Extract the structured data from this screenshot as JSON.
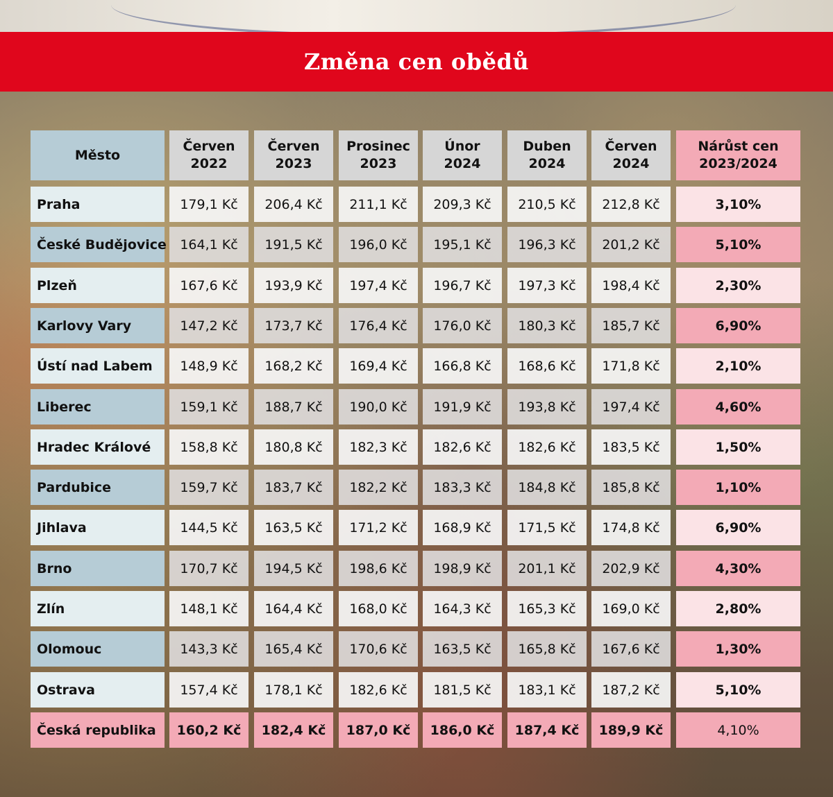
{
  "title": "Změna cen obědů",
  "chart_data": {
    "type": "table",
    "title": "Změna cen obědů",
    "columns": [
      {
        "line1": "Město",
        "line2": ""
      },
      {
        "line1": "Červen",
        "line2": "2022"
      },
      {
        "line1": "Červen",
        "line2": "2023"
      },
      {
        "line1": "Prosinec",
        "line2": "2023"
      },
      {
        "line1": "Únor",
        "line2": "2024"
      },
      {
        "line1": "Duben",
        "line2": "2024"
      },
      {
        "line1": "Červen",
        "line2": "2024"
      },
      {
        "line1": "Nárůst cen",
        "line2": "2023/2024"
      }
    ],
    "rows": [
      {
        "city": "Praha",
        "values": [
          "179,1 Kč",
          "206,4 Kč",
          "211,1 Kč",
          "209,3 Kč",
          "210,5 Kč",
          "212,8 Kč"
        ],
        "increase": "3,10%"
      },
      {
        "city": "České Budějovice",
        "values": [
          "164,1 Kč",
          "191,5 Kč",
          "196,0 Kč",
          "195,1 Kč",
          "196,3 Kč",
          "201,2 Kč"
        ],
        "increase": "5,10%"
      },
      {
        "city": "Plzeň",
        "values": [
          "167,6 Kč",
          "193,9 Kč",
          "197,4 Kč",
          "196,7 Kč",
          "197,3 Kč",
          "198,4 Kč"
        ],
        "increase": "2,30%"
      },
      {
        "city": "Karlovy Vary",
        "values": [
          "147,2 Kč",
          "173,7 Kč",
          "176,4 Kč",
          "176,0 Kč",
          "180,3 Kč",
          "185,7 Kč"
        ],
        "increase": "6,90%"
      },
      {
        "city": "Ústí nad Labem",
        "values": [
          "148,9 Kč",
          "168,2 Kč",
          "169,4 Kč",
          "166,8 Kč",
          "168,6 Kč",
          "171,8 Kč"
        ],
        "increase": "2,10%"
      },
      {
        "city": "Liberec",
        "values": [
          "159,1 Kč",
          "188,7 Kč",
          "190,0 Kč",
          "191,9 Kč",
          "193,8 Kč",
          "197,4 Kč"
        ],
        "increase": "4,60%"
      },
      {
        "city": "Hradec Králové",
        "values": [
          "158,8 Kč",
          "180,8 Kč",
          "182,3 Kč",
          "182,6 Kč",
          "182,6 Kč",
          "183,5 Kč"
        ],
        "increase": "1,50%"
      },
      {
        "city": "Pardubice",
        "values": [
          "159,7 Kč",
          "183,7 Kč",
          "182,2 Kč",
          "183,3 Kč",
          "184,8 Kč",
          "185,8 Kč"
        ],
        "increase": "1,10%"
      },
      {
        "city": "Jihlava",
        "values": [
          "144,5 Kč",
          "163,5 Kč",
          "171,2 Kč",
          "168,9 Kč",
          "171,5 Kč",
          "174,8 Kč"
        ],
        "increase": "6,90%"
      },
      {
        "city": "Brno",
        "values": [
          "170,7 Kč",
          "194,5 Kč",
          "198,6 Kč",
          "198,9 Kč",
          "201,1 Kč",
          "202,9 Kč"
        ],
        "increase": "4,30%"
      },
      {
        "city": "Zlín",
        "values": [
          "148,1 Kč",
          "164,4 Kč",
          "168,0 Kč",
          "164,3 Kč",
          "165,3 Kč",
          "169,0 Kč"
        ],
        "increase": "2,80%"
      },
      {
        "city": "Olomouc",
        "values": [
          "143,3 Kč",
          "165,4 Kč",
          "170,6 Kč",
          "163,5 Kč",
          "165,8 Kč",
          "167,6 Kč"
        ],
        "increase": "1,30%"
      },
      {
        "city": "Ostrava",
        "values": [
          "157,4 Kč",
          "178,1 Kč",
          "182,6 Kč",
          "181,5 Kč",
          "183,1 Kč",
          "187,2 Kč"
        ],
        "increase": "5,10%"
      },
      {
        "city": "Česká republika",
        "values": [
          "160,2 Kč",
          "182,4 Kč",
          "187,0 Kč",
          "186,0 Kč",
          "187,4 Kč",
          "189,9 Kč"
        ],
        "increase": "4,10%",
        "total": true
      }
    ]
  }
}
